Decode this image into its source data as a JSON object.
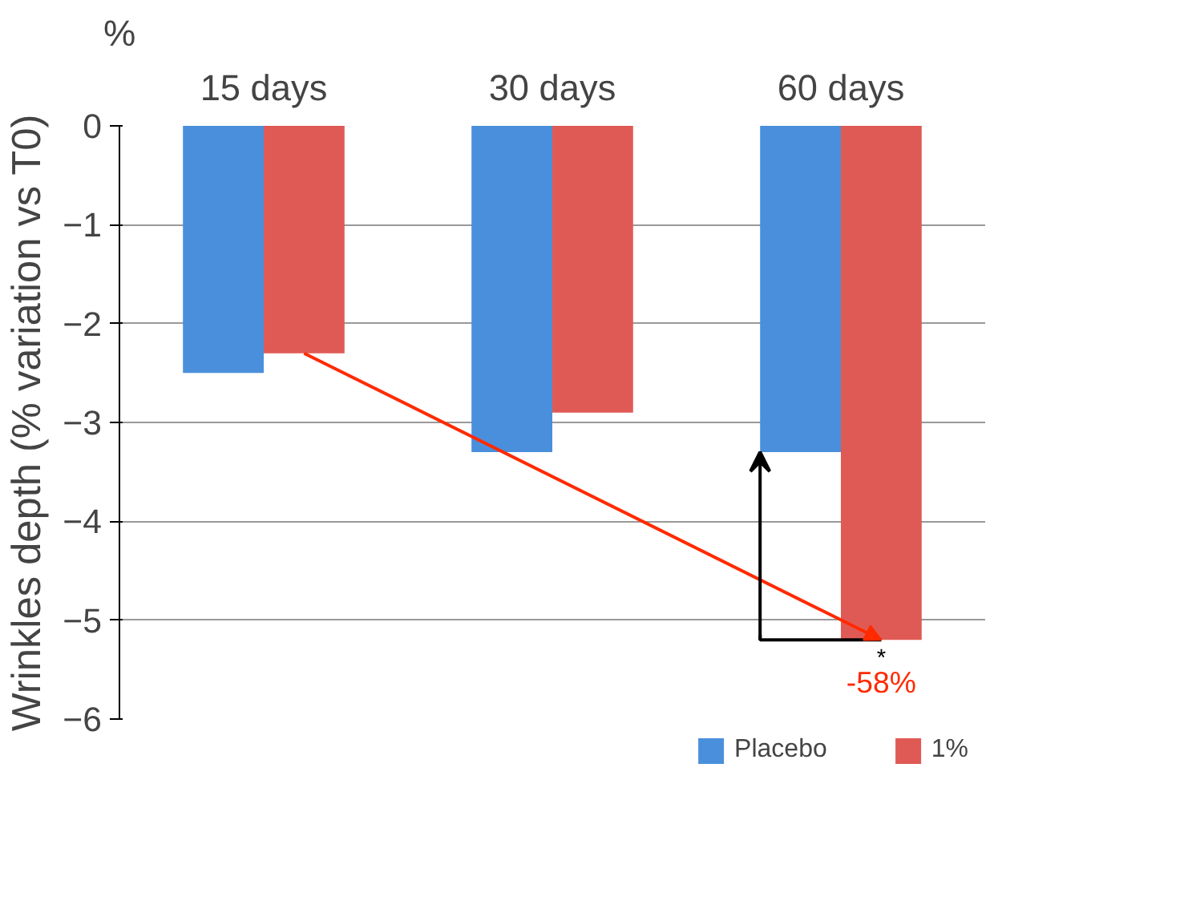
{
  "chart_data": {
    "type": "bar",
    "ylabel": "Wrinkles depth (% variation vs T0)",
    "categories": [
      "15 days",
      "30 days",
      "60 days"
    ],
    "series": [
      {
        "name": "Placebo",
        "color": "#4a8fdc",
        "values": [
          -2.5,
          -3.3,
          -3.3
        ]
      },
      {
        "name": "1%",
        "color": "#e05a55",
        "values": [
          -2.3,
          -2.9,
          -5.2
        ]
      }
    ],
    "ylim": [
      -6,
      0
    ],
    "yticks": [
      -6,
      -5,
      -4,
      -3,
      -2,
      -1,
      0
    ],
    "grid": "y",
    "legend": "bottom",
    "annotations": [
      "%",
      {
        "text": "*",
        "x": "60 days",
        "y": -5.2
      },
      {
        "text": "-58%",
        "x": "60 days",
        "y": -5.2
      }
    ]
  }
}
